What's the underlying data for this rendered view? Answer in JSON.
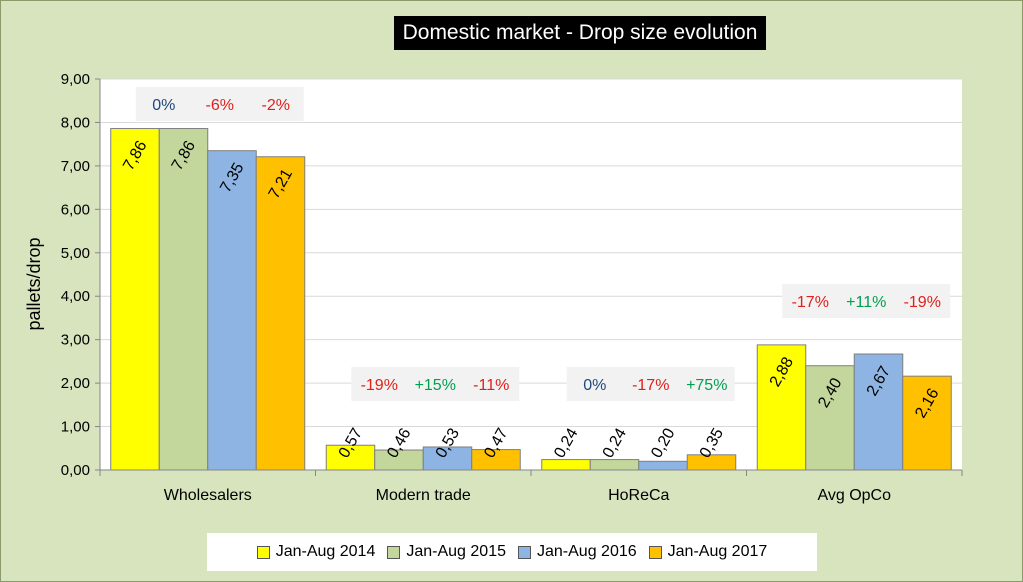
{
  "chart_data": {
    "type": "bar",
    "title": "Domestic market - Drop size evolution",
    "ylabel": "pallets/drop",
    "ylim": [
      0,
      9
    ],
    "ytick_labels": [
      "0,00",
      "1,00",
      "2,00",
      "3,00",
      "4,00",
      "5,00",
      "6,00",
      "7,00",
      "8,00",
      "9,00"
    ],
    "grid": true,
    "legend_position": "bottom",
    "categories": [
      "Wholesalers",
      "Modern trade",
      "HoReCa",
      "Avg OpCo"
    ],
    "series": [
      {
        "name": "Jan-Aug 2014",
        "color": "#ffff00",
        "values": [
          7.86,
          0.57,
          0.24,
          2.88
        ],
        "labels": [
          "7,86",
          "0,57",
          "0,24",
          "2,88"
        ]
      },
      {
        "name": "Jan-Aug 2015",
        "color": "#c3d69b",
        "values": [
          7.86,
          0.46,
          0.24,
          2.4
        ],
        "labels": [
          "7,86",
          "0,46",
          "0,24",
          "2,40"
        ]
      },
      {
        "name": "Jan-Aug 2016",
        "color": "#8eb4e3",
        "values": [
          7.35,
          0.53,
          0.2,
          2.67
        ],
        "labels": [
          "7,35",
          "0,53",
          "0,20",
          "2,67"
        ]
      },
      {
        "name": "Jan-Aug 2017",
        "color": "#ffc000",
        "values": [
          7.21,
          0.47,
          0.35,
          2.16
        ],
        "labels": [
          "7,21",
          "0,47",
          "0,35",
          "2,16"
        ]
      }
    ],
    "annotations": [
      {
        "category": "Wholesalers",
        "changes": [
          {
            "text": "0%",
            "color": "#1f497d"
          },
          {
            "text": "-6%",
            "color": "#e0201b"
          },
          {
            "text": "-2%",
            "color": "#e0201b"
          }
        ]
      },
      {
        "category": "Modern trade",
        "changes": [
          {
            "text": "-19%",
            "color": "#e0201b"
          },
          {
            "text": "+15%",
            "color": "#00a050"
          },
          {
            "text": "-11%",
            "color": "#e0201b"
          }
        ]
      },
      {
        "category": "HoReCa",
        "changes": [
          {
            "text": "0%",
            "color": "#1f497d"
          },
          {
            "text": "-17%",
            "color": "#e0201b"
          },
          {
            "text": "+75%",
            "color": "#00a050"
          }
        ]
      },
      {
        "category": "Avg OpCo",
        "changes": [
          {
            "text": "-17%",
            "color": "#e0201b"
          },
          {
            "text": "+11%",
            "color": "#00a050"
          },
          {
            "text": "-19%",
            "color": "#e0201b"
          }
        ]
      }
    ]
  }
}
